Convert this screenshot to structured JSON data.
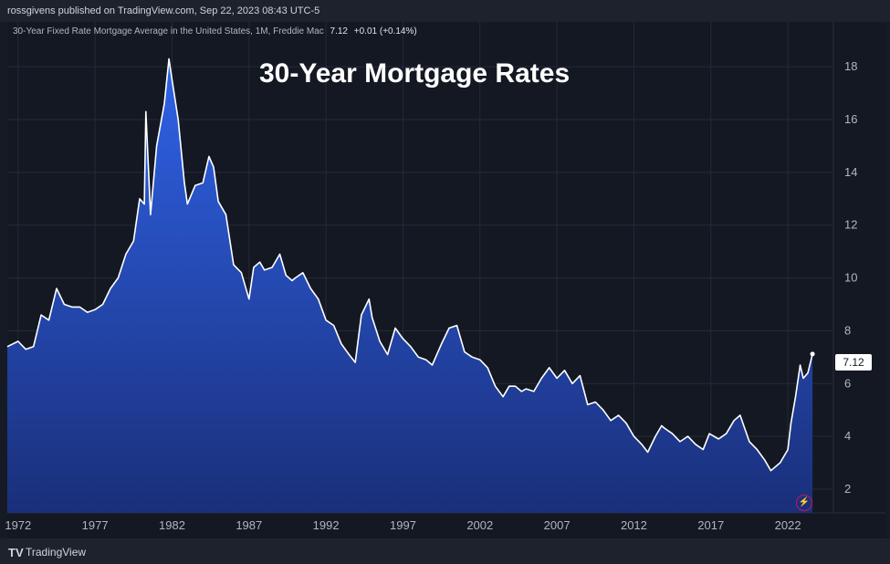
{
  "header": {
    "published_text": "rossgivens published on TradingView.com, Sep 22, 2023 08:43 UTC-5"
  },
  "legend": {
    "symbol": "30-Year Fixed Rate Mortgage Average in the United States, 1M, Freddie Mac",
    "last_value": "7.12",
    "change": "+0.01 (+0.14%)"
  },
  "footer": {
    "brand_logo": "TV",
    "brand_name": "TradingView"
  },
  "price_label": "7.12",
  "colors": {
    "background": "#141823",
    "area_top": "#2f63e8",
    "area_bottom": "#1a2f7a",
    "line": "#ffffff",
    "grid": "#252a36"
  },
  "icons": [
    "lightning-bolt-icon",
    "tradingview-logo-icon"
  ],
  "chart_data": {
    "type": "area",
    "title": "30-Year Mortgage Rates",
    "xlabel": "",
    "ylabel": "",
    "x_ticks": [
      "1972",
      "1977",
      "1982",
      "1987",
      "1992",
      "1997",
      "2002",
      "2007",
      "2012",
      "2017",
      "2022"
    ],
    "y_ticks": [
      2,
      4,
      6,
      8,
      10,
      12,
      14,
      16,
      18
    ],
    "ylim": [
      1.1,
      19.7
    ],
    "xlim": [
      1971.3,
      2024.9
    ],
    "grid": true,
    "series": [
      {
        "x": [
          1971.3,
          1972.0,
          1972.5,
          1973.0,
          1973.5,
          1974.0,
          1974.5,
          1975.0,
          1975.5,
          1976.0,
          1976.5,
          1977.0,
          1977.5,
          1978.0,
          1978.5,
          1979.0,
          1979.5,
          1979.9,
          1980.2,
          1980.3,
          1980.6,
          1981.0,
          1981.5,
          1981.8,
          1982.0,
          1982.4,
          1982.8,
          1983.0,
          1983.5,
          1984.0,
          1984.4,
          1984.7,
          1985.0,
          1985.5,
          1986.0,
          1986.5,
          1987.0,
          1987.3,
          1987.7,
          1988.0,
          1988.5,
          1989.0,
          1989.4,
          1989.8,
          1990.0,
          1990.5,
          1991.0,
          1991.5,
          1992.0,
          1992.5,
          1993.0,
          1993.5,
          1993.9,
          1994.3,
          1994.8,
          1995.0,
          1995.5,
          1996.0,
          1996.5,
          1997.0,
          1997.5,
          1998.0,
          1998.5,
          1998.9,
          1999.5,
          2000.0,
          2000.5,
          2001.0,
          2001.5,
          2002.0,
          2002.5,
          2003.0,
          2003.5,
          2003.9,
          2004.3,
          2004.7,
          2005.0,
          2005.5,
          2006.0,
          2006.5,
          2007.0,
          2007.5,
          2008.0,
          2008.5,
          2009.0,
          2009.5,
          2010.0,
          2010.5,
          2011.0,
          2011.5,
          2012.0,
          2012.5,
          2012.9,
          2013.4,
          2013.8,
          2014.0,
          2014.5,
          2015.0,
          2015.5,
          2016.0,
          2016.5,
          2016.9,
          2017.5,
          2018.0,
          2018.5,
          2018.9,
          2019.5,
          2020.0,
          2020.5,
          2020.9,
          2021.5,
          2022.0,
          2022.2,
          2022.5,
          2022.8,
          2023.0,
          2023.3,
          2023.6
        ],
        "y": [
          7.4,
          7.6,
          7.3,
          7.4,
          8.6,
          8.4,
          9.6,
          9.0,
          8.9,
          8.9,
          8.7,
          8.8,
          9.0,
          9.6,
          10.0,
          10.9,
          11.4,
          13.0,
          12.8,
          16.3,
          12.4,
          15.0,
          16.6,
          18.3,
          17.5,
          16.0,
          13.6,
          12.8,
          13.5,
          13.6,
          14.6,
          14.2,
          12.9,
          12.4,
          10.5,
          10.2,
          9.2,
          10.4,
          10.6,
          10.3,
          10.4,
          10.9,
          10.1,
          9.9,
          10.0,
          10.2,
          9.6,
          9.2,
          8.4,
          8.2,
          7.5,
          7.1,
          6.8,
          8.6,
          9.2,
          8.5,
          7.6,
          7.1,
          8.1,
          7.7,
          7.4,
          7.0,
          6.9,
          6.7,
          7.5,
          8.1,
          8.2,
          7.2,
          7.0,
          6.9,
          6.6,
          5.9,
          5.5,
          5.9,
          5.9,
          5.7,
          5.8,
          5.7,
          6.2,
          6.6,
          6.2,
          6.5,
          6.0,
          6.3,
          5.2,
          5.3,
          5.0,
          4.6,
          4.8,
          4.5,
          4.0,
          3.7,
          3.4,
          4.0,
          4.4,
          4.3,
          4.1,
          3.8,
          4.0,
          3.7,
          3.5,
          4.1,
          3.9,
          4.1,
          4.6,
          4.8,
          3.8,
          3.5,
          3.1,
          2.7,
          3.0,
          3.5,
          4.5,
          5.5,
          6.7,
          6.2,
          6.4,
          7.12
        ]
      }
    ]
  }
}
